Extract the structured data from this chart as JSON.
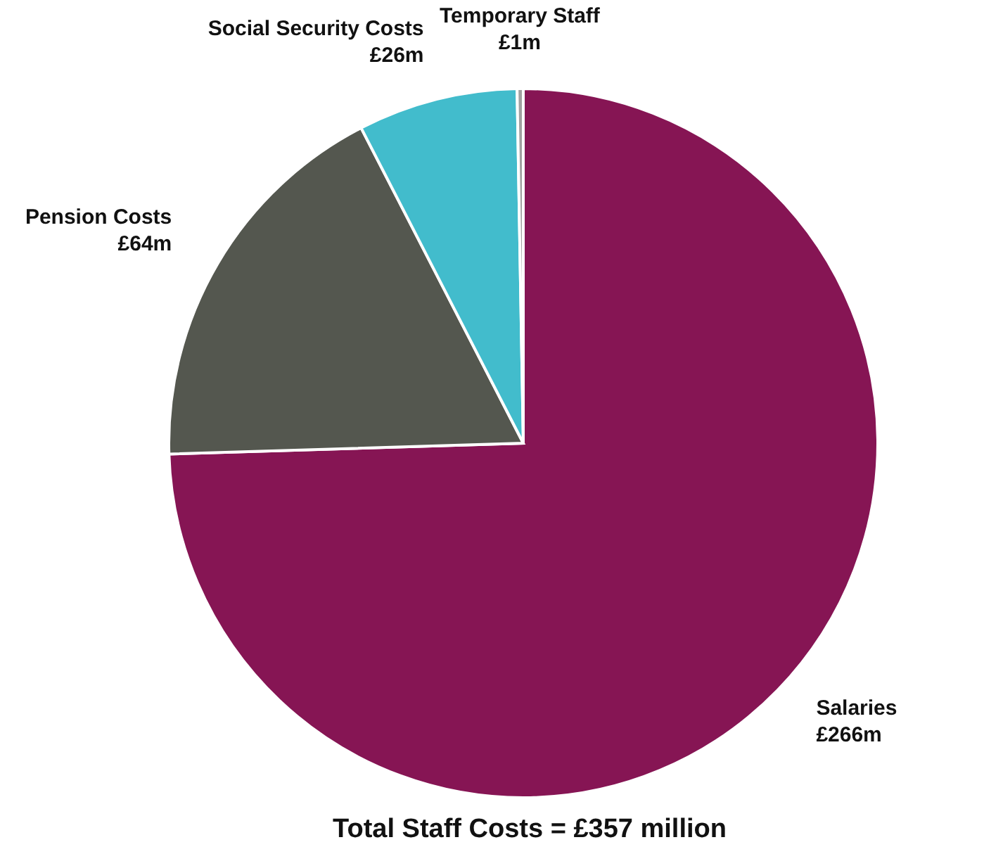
{
  "chart_data": {
    "type": "pie",
    "title": "Total Staff Costs = £357 million",
    "categories": [
      "Salaries",
      "Pension Costs",
      "Social Security Costs",
      "Temporary Staff"
    ],
    "values": [
      266,
      64,
      26,
      1
    ],
    "value_labels": [
      "£266m",
      "£64m",
      "£26m",
      "£1m"
    ],
    "colors": [
      "#861554",
      "#54574f",
      "#42bccc",
      "#a0a0a0"
    ]
  }
}
